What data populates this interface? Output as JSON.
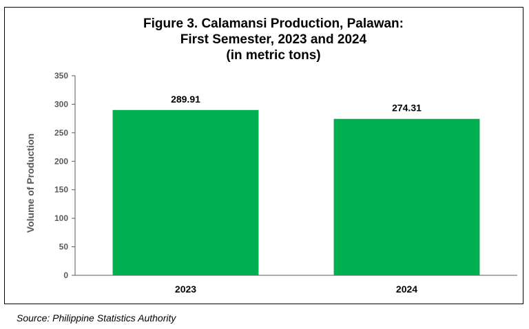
{
  "chart_data": {
    "type": "bar",
    "title_lines": [
      "Figure 3. Calamansi Production, Palawan:",
      "First Semester, 2023 and 2024",
      "(in metric tons)"
    ],
    "categories": [
      "2023",
      "2024"
    ],
    "values": [
      289.91,
      274.31
    ],
    "data_labels": [
      "289.91",
      "274.31"
    ],
    "xlabel": "",
    "ylabel": "Volume of Production",
    "ylim": [
      0,
      350
    ],
    "yticks": [
      0,
      50,
      100,
      150,
      200,
      250,
      300,
      350
    ],
    "grid": false,
    "legend": "none",
    "bar_color": "#00B050"
  },
  "source": "Source: Philippine Statistics Authority"
}
